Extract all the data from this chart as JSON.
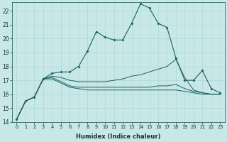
{
  "xlabel": "Humidex (Indice chaleur)",
  "background_color": "#c8e8e8",
  "grid_color": "#b0d8d8",
  "line_color": "#1a6060",
  "xlim": [
    -0.5,
    23.5
  ],
  "ylim": [
    14,
    22.6
  ],
  "yticks": [
    14,
    15,
    16,
    17,
    18,
    19,
    20,
    21,
    22
  ],
  "xticks": [
    0,
    1,
    2,
    3,
    4,
    5,
    6,
    7,
    8,
    9,
    10,
    11,
    12,
    13,
    14,
    15,
    16,
    17,
    18,
    19,
    20,
    21,
    22,
    23
  ],
  "line1_x": [
    0,
    1,
    2,
    3,
    4,
    5,
    6,
    7,
    8,
    9,
    10,
    11,
    12,
    13,
    14,
    15,
    16,
    17,
    18,
    19,
    20,
    21,
    22,
    23
  ],
  "line1_y": [
    14.2,
    15.5,
    15.8,
    17.1,
    17.5,
    17.6,
    17.6,
    18.0,
    19.1,
    20.5,
    20.1,
    19.9,
    19.9,
    21.1,
    22.5,
    22.2,
    21.1,
    20.8,
    18.6,
    17.0,
    17.0,
    17.7,
    16.4,
    16.1
  ],
  "line2_x": [
    0,
    1,
    2,
    3,
    4,
    5,
    6,
    7,
    8,
    9,
    10,
    11,
    12,
    13,
    14,
    15,
    16,
    17,
    18,
    19,
    20,
    21,
    22,
    23
  ],
  "line2_y": [
    14.2,
    15.5,
    15.8,
    17.1,
    17.3,
    17.2,
    17.0,
    16.9,
    16.9,
    16.9,
    16.9,
    17.0,
    17.1,
    17.3,
    17.4,
    17.6,
    17.8,
    18.0,
    18.5,
    17.2,
    16.3,
    16.1,
    16.0,
    16.0
  ],
  "line3_x": [
    0,
    1,
    2,
    3,
    4,
    5,
    6,
    7,
    8,
    9,
    10,
    11,
    12,
    13,
    14,
    15,
    16,
    17,
    18,
    19,
    20,
    21,
    22,
    23
  ],
  "line3_y": [
    14.2,
    15.5,
    15.8,
    17.1,
    17.2,
    16.9,
    16.6,
    16.5,
    16.5,
    16.5,
    16.5,
    16.5,
    16.5,
    16.5,
    16.5,
    16.5,
    16.6,
    16.6,
    16.7,
    16.4,
    16.2,
    16.1,
    16.0,
    16.0
  ],
  "line4_x": [
    0,
    1,
    2,
    3,
    4,
    5,
    6,
    7,
    8,
    9,
    10,
    11,
    12,
    13,
    14,
    15,
    16,
    17,
    18,
    19,
    20,
    21,
    22,
    23
  ],
  "line4_y": [
    14.2,
    15.5,
    15.8,
    17.1,
    17.1,
    16.8,
    16.5,
    16.4,
    16.3,
    16.3,
    16.3,
    16.3,
    16.3,
    16.3,
    16.3,
    16.3,
    16.3,
    16.3,
    16.3,
    16.2,
    16.1,
    16.0,
    16.0,
    16.0
  ]
}
